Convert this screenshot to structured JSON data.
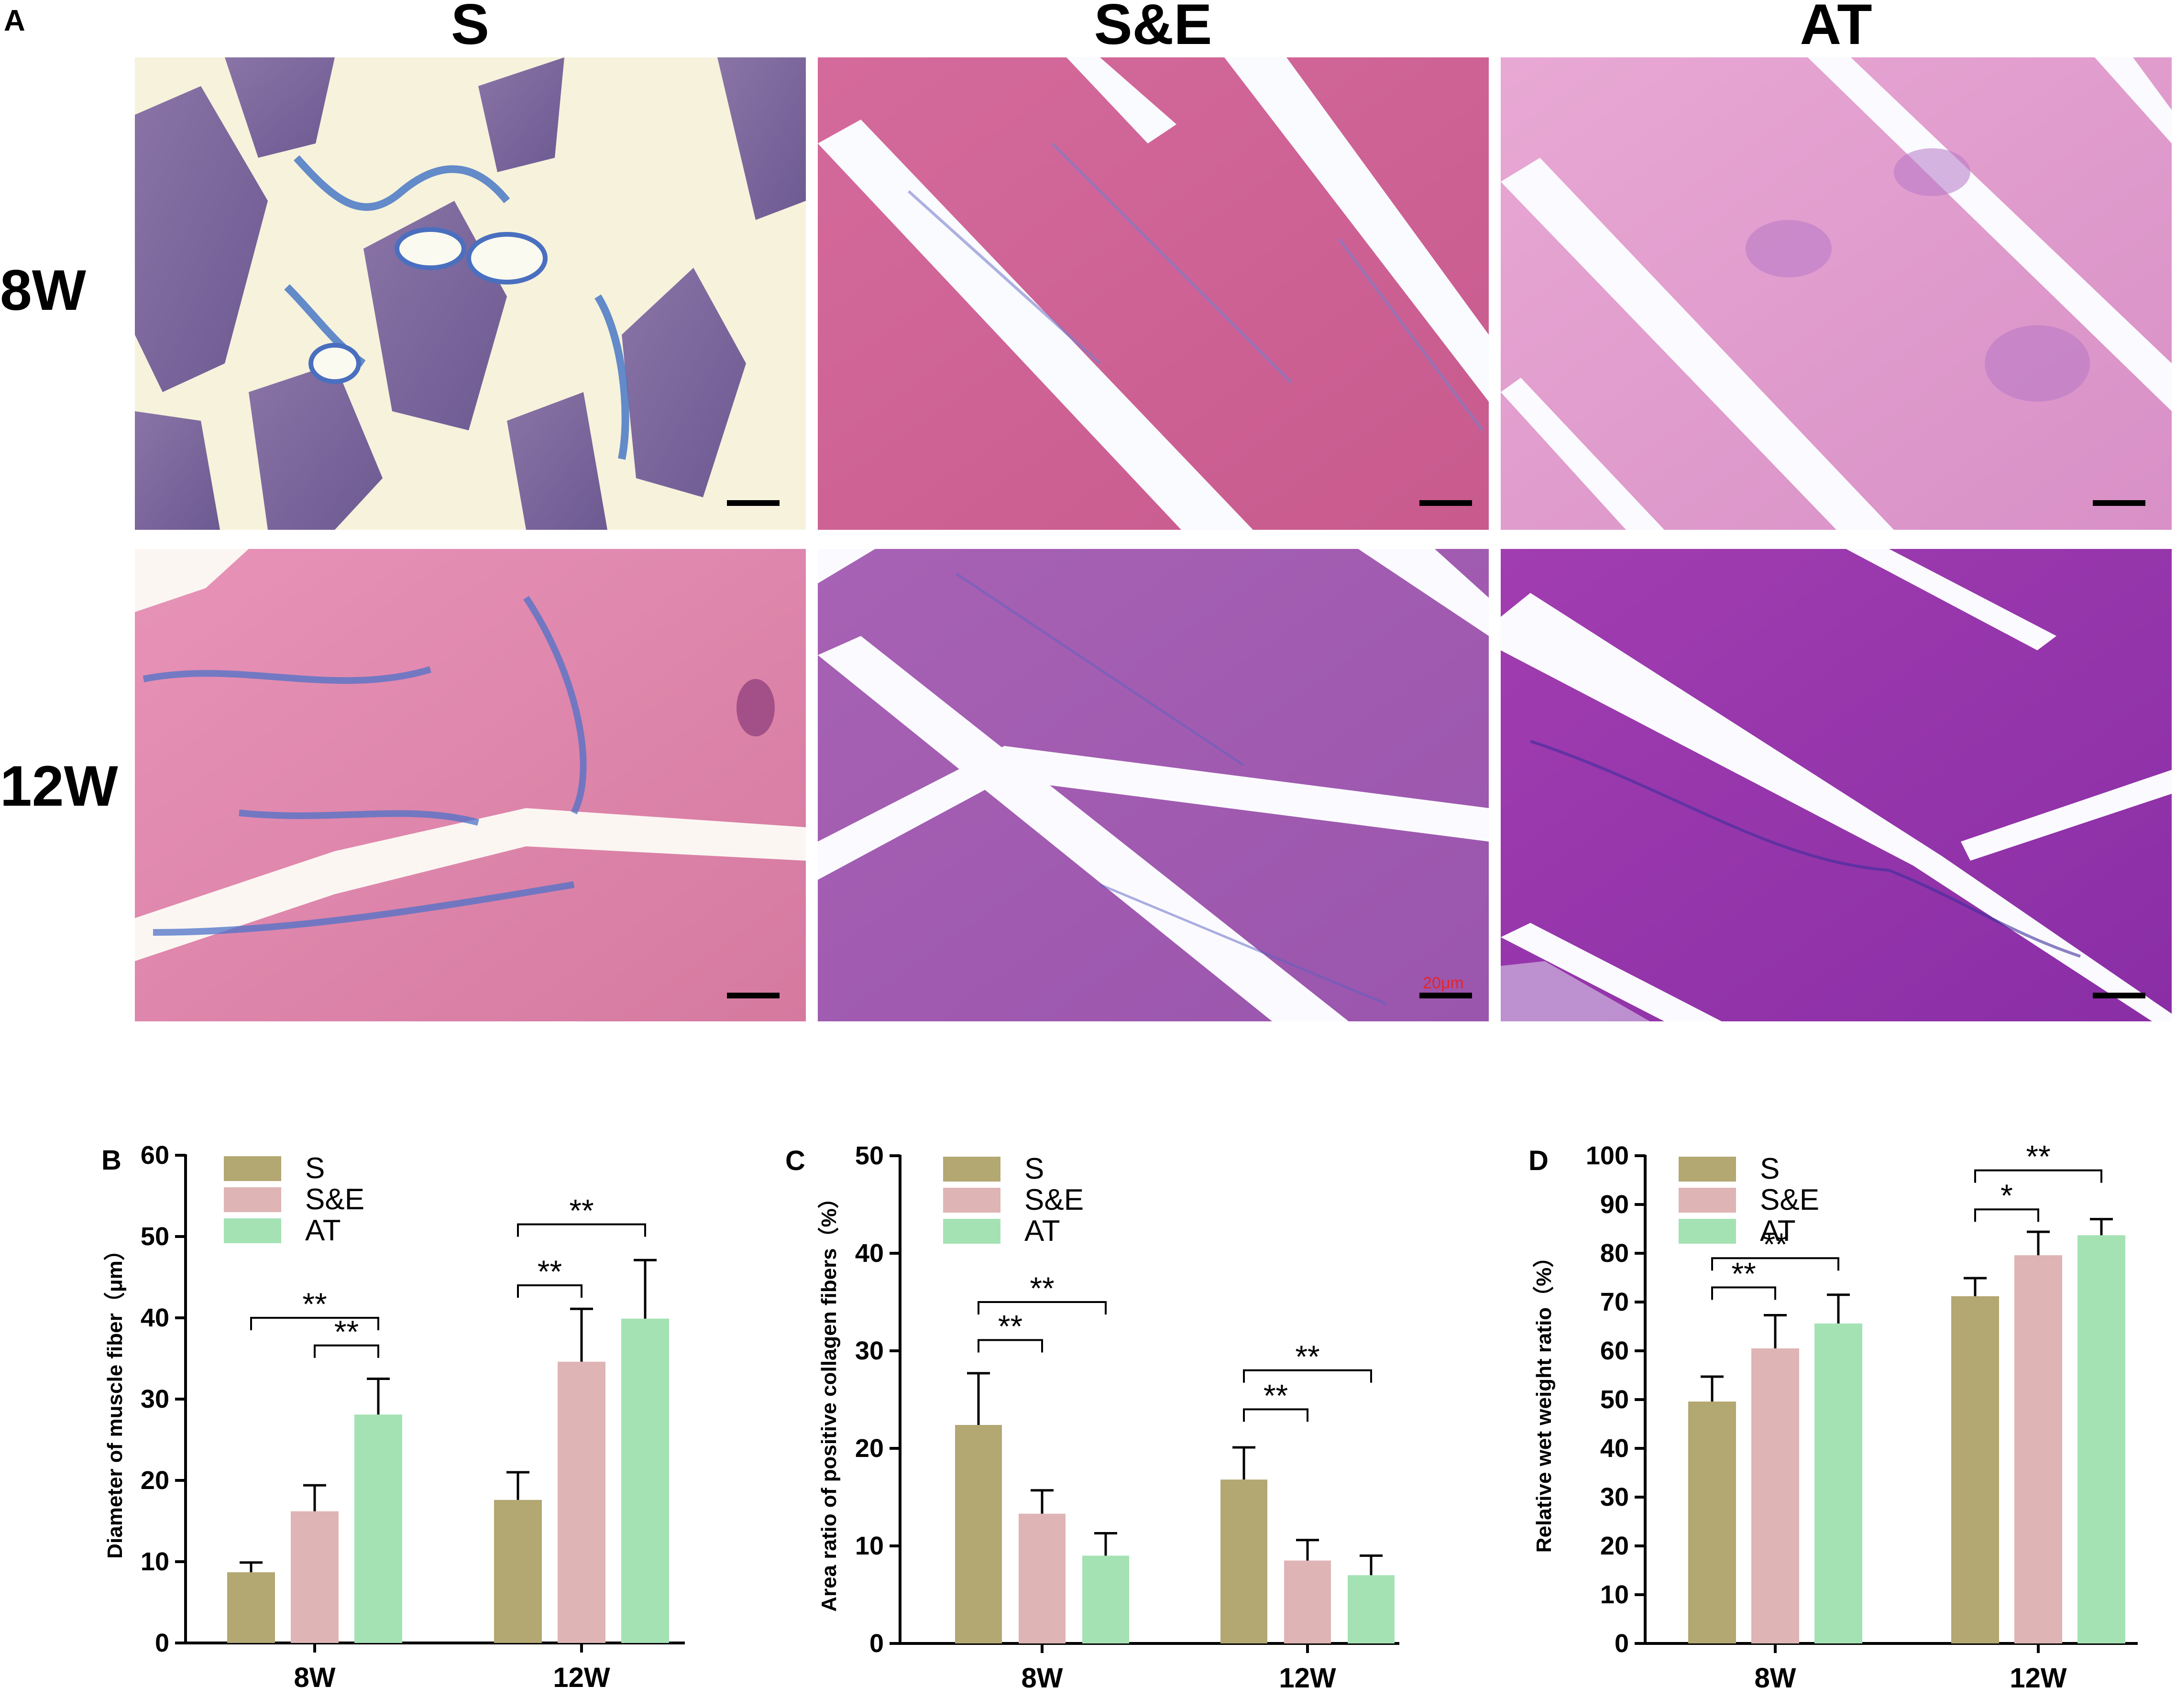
{
  "panel_a": {
    "letter": "A",
    "columns": [
      "S",
      "S&E",
      "AT"
    ],
    "rows": [
      "8W",
      "12W"
    ],
    "scale_label": "20μm"
  },
  "colors": {
    "S": "#b3a772",
    "S&E": "#dfb4b4",
    "AT": "#a4e2b4"
  },
  "chart_data": [
    {
      "letter": "B",
      "type": "bar",
      "categories": [
        "8W",
        "12W"
      ],
      "series": [
        {
          "name": "S",
          "values": [
            8.7,
            17.6
          ],
          "errors": [
            1.2,
            3.4
          ]
        },
        {
          "name": "S&E",
          "values": [
            16.2,
            34.6
          ],
          "errors": [
            3.2,
            6.5
          ]
        },
        {
          "name": "AT",
          "values": [
            28.1,
            39.9
          ],
          "errors": [
            4.4,
            7.2
          ]
        }
      ],
      "ylabel": "Diameter of muscle fiber（μm）",
      "ylim": [
        0,
        60
      ],
      "yticks": [
        0,
        10,
        20,
        30,
        40,
        50,
        60
      ],
      "legend": "top-left",
      "annotations": [
        {
          "group": 0,
          "from": 1,
          "to": 2,
          "label": "**",
          "y": 36.6
        },
        {
          "group": 0,
          "from": 0,
          "to": 2,
          "label": "**",
          "y": 40.0
        },
        {
          "group": 1,
          "from": 0,
          "to": 1,
          "label": "**",
          "y": 44.0
        },
        {
          "group": 1,
          "from": 0,
          "to": 2,
          "label": "**",
          "y": 51.5
        }
      ]
    },
    {
      "letter": "C",
      "type": "bar",
      "categories": [
        "8W",
        "12W"
      ],
      "series": [
        {
          "name": "S",
          "values": [
            22.4,
            16.8
          ],
          "errors": [
            5.3,
            3.3
          ]
        },
        {
          "name": "S&E",
          "values": [
            13.3,
            8.5
          ],
          "errors": [
            2.4,
            2.1
          ]
        },
        {
          "name": "AT",
          "values": [
            9.0,
            7.0
          ],
          "errors": [
            2.3,
            2.0
          ]
        }
      ],
      "ylabel": "Area ratio of positive collagen fibers（%）",
      "ylim": [
        0,
        50
      ],
      "yticks": [
        0,
        10,
        20,
        30,
        40,
        50
      ],
      "legend": "top-left",
      "annotations": [
        {
          "group": 0,
          "from": 0,
          "to": 1,
          "label": "**",
          "y": 31.1
        },
        {
          "group": 0,
          "from": 0,
          "to": 2,
          "label": "**",
          "y": 35.0
        },
        {
          "group": 1,
          "from": 0,
          "to": 1,
          "label": "**",
          "y": 24.0
        },
        {
          "group": 1,
          "from": 0,
          "to": 2,
          "label": "**",
          "y": 28.0
        }
      ]
    },
    {
      "letter": "D",
      "type": "bar",
      "categories": [
        "8W",
        "12W"
      ],
      "series": [
        {
          "name": "S",
          "values": [
            49.6,
            71.2
          ],
          "errors": [
            5.1,
            3.7
          ]
        },
        {
          "name": "S&E",
          "values": [
            60.5,
            79.6
          ],
          "errors": [
            6.8,
            4.8
          ]
        },
        {
          "name": "AT",
          "values": [
            65.6,
            83.7
          ],
          "errors": [
            5.9,
            3.3
          ]
        }
      ],
      "ylabel": "Relative wet weight ratio（%）",
      "ylim": [
        0,
        100
      ],
      "yticks": [
        0,
        10,
        20,
        30,
        40,
        50,
        60,
        70,
        80,
        90,
        100
      ],
      "legend": "top-left",
      "annotations": [
        {
          "group": 0,
          "from": 0,
          "to": 1,
          "label": "**",
          "y": 73.0
        },
        {
          "group": 0,
          "from": 0,
          "to": 2,
          "label": "**",
          "y": 79.0
        },
        {
          "group": 1,
          "from": 0,
          "to": 1,
          "label": "*",
          "y": 89.0
        },
        {
          "group": 1,
          "from": 0,
          "to": 2,
          "label": "**",
          "y": 97.0
        }
      ]
    }
  ]
}
